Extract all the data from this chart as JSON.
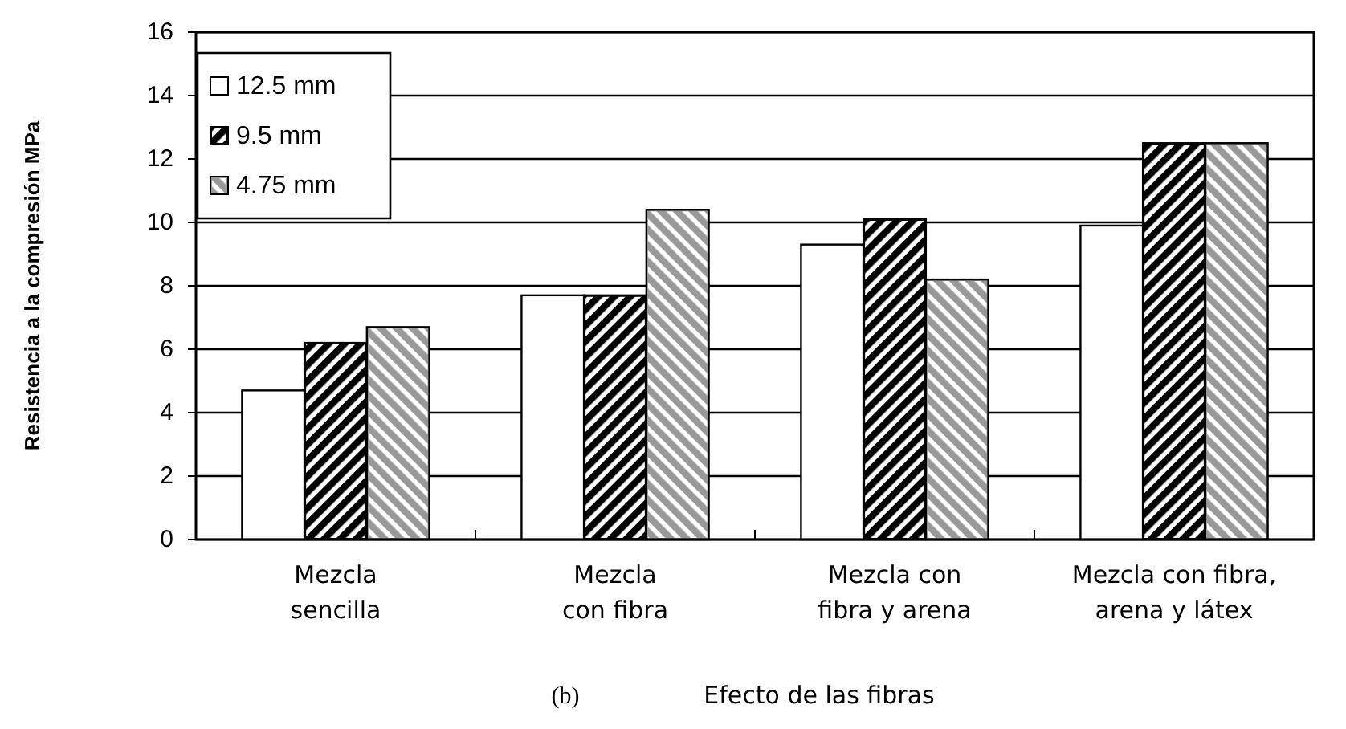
{
  "chart_data": {
    "type": "bar",
    "xlabel": "Efecto de las fibras",
    "ylabel": "Resistencia a la compresión MPa",
    "annotations": [
      "(b)"
    ],
    "categories": [
      "Mezcla\nsencilla",
      "Mezcla\ncon fibra",
      "Mezcla con\nfibra y arena",
      "Mezcla con fibra,\narena y látex"
    ],
    "series": [
      {
        "name": "12.5 mm",
        "color": "#ffffff",
        "values": [
          4.7,
          7.7,
          9.3,
          9.9
        ]
      },
      {
        "name": "9.5 mm",
        "color": "#000000",
        "values": [
          6.2,
          7.7,
          10.1,
          12.5
        ]
      },
      {
        "name": "4.75 mm",
        "color": "#999999",
        "values": [
          6.7,
          10.4,
          8.2,
          12.5
        ]
      }
    ],
    "ylim": [
      0,
      16
    ],
    "yticks": [
      0,
      2,
      4,
      6,
      8,
      10,
      12,
      14,
      16
    ],
    "grid": "y",
    "legend": "top left"
  }
}
